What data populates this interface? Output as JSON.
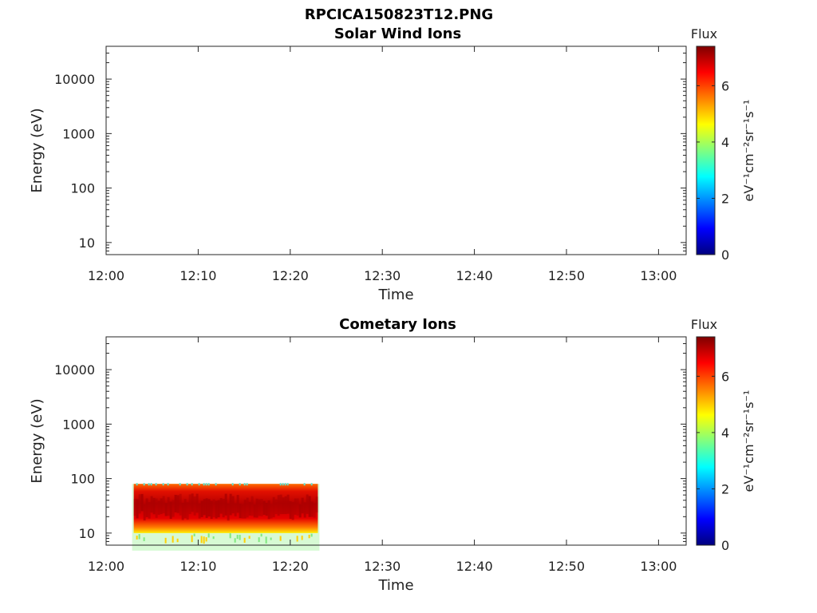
{
  "figure_title": "RPCICA150823T12.PNG",
  "chart_data": [
    {
      "type": "heatmap",
      "title": "Solar Wind Ions",
      "xlabel": "Time",
      "ylabel": "Energy (eV)",
      "y_scale": "log",
      "ylim": [
        6,
        40000
      ],
      "xlim": [
        "12:00",
        "13:03"
      ],
      "x_tick_labels": [
        "12:00",
        "12:10",
        "12:20",
        "12:30",
        "12:40",
        "12:50",
        "13:00"
      ],
      "y_tick_labels": [
        "10",
        "100",
        "1000",
        "10000"
      ],
      "colorbar": {
        "title": "Flux",
        "unit": "eV⁻¹cm⁻²sr⁻¹s⁻¹",
        "range": [
          0,
          7.4
        ],
        "tick_labels": [
          "0",
          "2",
          "4",
          "6"
        ],
        "colormap": "jet"
      },
      "data_regions": []
    },
    {
      "type": "heatmap",
      "title": "Cometary Ions",
      "xlabel": "Time",
      "ylabel": "Energy (eV)",
      "y_scale": "log",
      "ylim": [
        6,
        40000
      ],
      "xlim": [
        "12:00",
        "13:03"
      ],
      "x_tick_labels": [
        "12:00",
        "12:10",
        "12:20",
        "12:30",
        "12:40",
        "12:50",
        "13:00"
      ],
      "y_tick_labels": [
        "10",
        "100",
        "1000",
        "10000"
      ],
      "colorbar": {
        "title": "Flux",
        "unit": "eV⁻¹cm⁻²sr⁻¹s⁻¹",
        "range": [
          0,
          7.4
        ],
        "tick_labels": [
          "0",
          "2",
          "4",
          "6"
        ],
        "colormap": "jet"
      },
      "data_regions": [
        {
          "time_start": "12:03",
          "time_end": "12:23",
          "energy_min": 10,
          "energy_max": 80,
          "peak_flux": 7
        }
      ]
    }
  ]
}
